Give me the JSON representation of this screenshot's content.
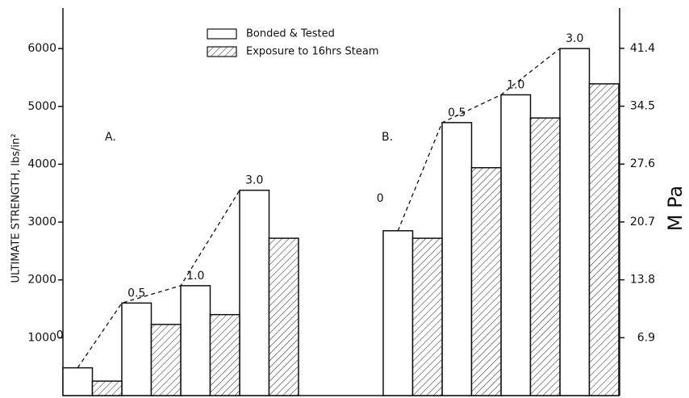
{
  "chart_data": {
    "type": "bar",
    "y_label": "ULTIMATE STRENGTH, lbs/in²",
    "y2_label": "M Pa",
    "group_labels": [
      "A.",
      "B."
    ],
    "categories": [
      "0",
      "0.5",
      "1.0",
      "3.0",
      "0",
      "0.5",
      "1.0",
      "3.0"
    ],
    "series": [
      {
        "name": "Bonded & Tested",
        "color": "#ffffff",
        "values": [
          480,
          1600,
          1900,
          3550,
          2850,
          4720,
          5200,
          6000
        ]
      },
      {
        "name": "Exposure to 16hrs Steam",
        "color": "hatch",
        "values": [
          250,
          1230,
          1400,
          2720,
          2720,
          3940,
          4800,
          5390
        ]
      }
    ],
    "ylim": [
      0,
      6700
    ],
    "yticks": [
      1000,
      2000,
      3000,
      4000,
      5000,
      6000
    ],
    "y2lim": [
      0,
      46.2
    ],
    "y2ticks": [
      6.9,
      13.8,
      20.7,
      27.6,
      34.5,
      41.4
    ],
    "trend_line": true
  }
}
